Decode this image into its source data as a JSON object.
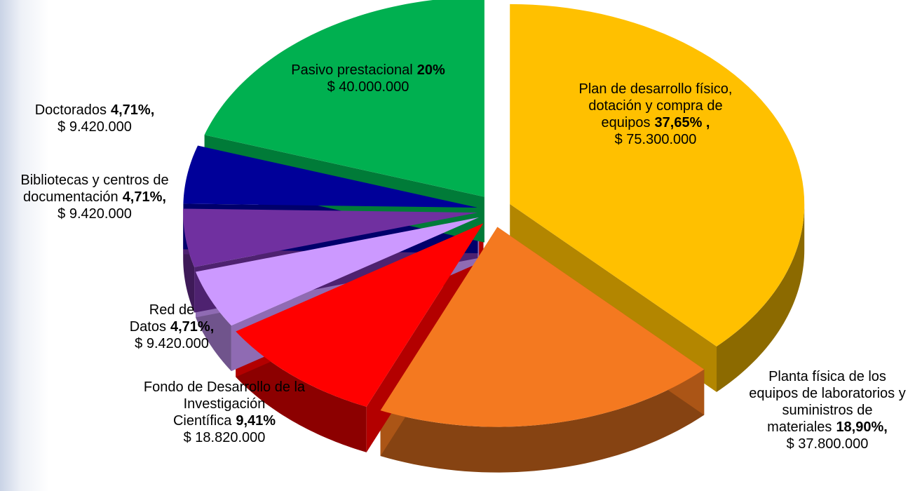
{
  "chart_data": {
    "type": "pie",
    "categories": [
      "Plan de desarrollo físico, dotación y compra de equipos",
      "Planta física de los equipos de laboratorios y suministros de materiales",
      "Fondo de Desarrollo de la Investigación Científica",
      "Red de Datos",
      "Bibliotecas y centros de documentación",
      "Doctorados",
      "Pasivo prestacional"
    ],
    "values": [
      37.65,
      18.9,
      9.41,
      4.71,
      4.71,
      4.71,
      20
    ],
    "value_labels": [
      "37,65% ,",
      "18,90%,",
      "9,41%",
      "4,71%,",
      "4,71%,",
      "4,71%,",
      "20%"
    ],
    "amount_labels": [
      "$ 75.300.000",
      "$ 37.800.000",
      "$ 18.820.000",
      "$ 9.420.000",
      "$ 9.420.000",
      "$ 9.420.000",
      "$ 40.000.000"
    ],
    "colors": [
      "#ffc000",
      "#f47920",
      "#ff0000",
      "#cc99ff",
      "#7030a0",
      "#000099",
      "#00b050"
    ]
  }
}
